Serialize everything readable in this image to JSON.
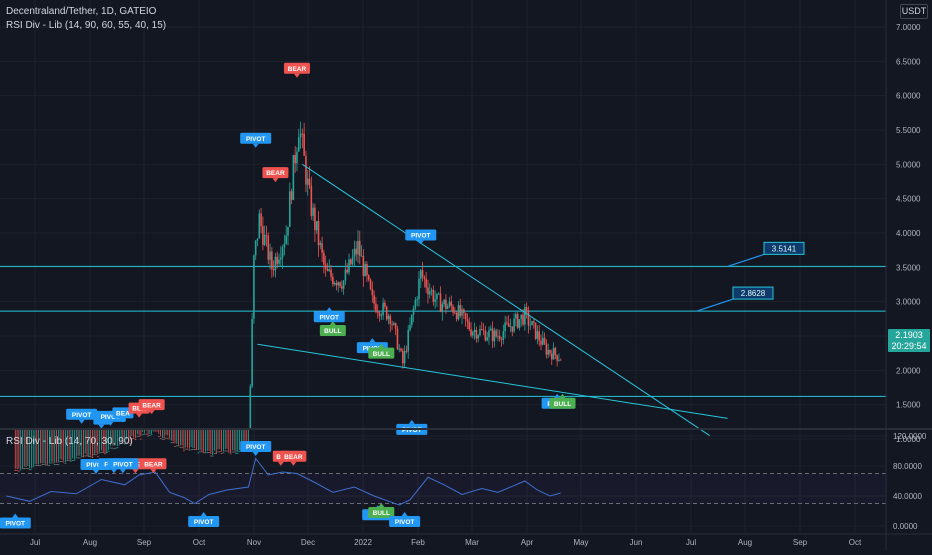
{
  "header": {
    "symbol_line": "Decentraland/Tether, 1D, GATEIO",
    "indicator_line": "RSI Div - Lib (14, 90, 60, 55, 40, 15)",
    "rsi_pane_title": "RSI Div - Lib (14, 70, 30, 90)"
  },
  "price_scale": {
    "currency_badge": "USDT",
    "current_price": "2.1903",
    "countdown": "20:29:54"
  },
  "colors": {
    "background": "#131722",
    "up": "#26a69a",
    "down": "#ef5350",
    "trendline": "#26c6da",
    "pivot_label": "#2196f3",
    "bear_label": "#ef5350",
    "bull_label": "#4caf50",
    "rsi_line": "#3f6fd0"
  },
  "chart_data": [
    {
      "type": "candlestick",
      "pane": "price",
      "yticks": [
        1.0,
        1.5,
        2.0,
        2.5,
        3.0,
        3.5,
        4.0,
        4.5,
        5.0,
        5.5,
        6.0,
        6.5,
        7.0
      ],
      "ytick_labels": [
        "1.0000",
        "1.5000",
        "2.0000",
        "2.5000",
        "3.0000",
        "3.5000",
        "4.0000",
        "4.5000",
        "5.0000",
        "5.5000",
        "6.0000",
        "6.5000",
        "7.0000"
      ],
      "xtick_labels": [
        "Jul",
        "Aug",
        "Sep",
        "Oct",
        "Nov",
        "Dec",
        "2022",
        "Feb",
        "Mar",
        "Apr",
        "May",
        "Jun",
        "Jul",
        "Aug",
        "Sep",
        "Oct"
      ],
      "price_path": [
        [
          "2021-06-20",
          0.55
        ],
        [
          "2021-07-15",
          0.65
        ],
        [
          "2021-08-08",
          0.8
        ],
        [
          "2021-08-22",
          0.95
        ],
        [
          "2021-09-05",
          1.1
        ],
        [
          "2021-09-20",
          0.85
        ],
        [
          "2021-10-10",
          0.78
        ],
        [
          "2021-10-28",
          0.85
        ],
        [
          "2021-10-31",
          3.6
        ],
        [
          "2021-11-03",
          4.2
        ],
        [
          "2021-11-10",
          3.5
        ],
        [
          "2021-11-18",
          4.0
        ],
        [
          "2021-11-25",
          5.6
        ],
        [
          "2021-12-01",
          4.5
        ],
        [
          "2021-12-10",
          3.4
        ],
        [
          "2021-12-20",
          3.3
        ],
        [
          "2021-12-28",
          3.8
        ],
        [
          "2022-01-05",
          3.0
        ],
        [
          "2022-01-15",
          2.8
        ],
        [
          "2022-01-22",
          2.1
        ],
        [
          "2022-02-01",
          3.4
        ],
        [
          "2022-02-10",
          3.0
        ],
        [
          "2022-02-20",
          2.9
        ],
        [
          "2022-03-01",
          2.6
        ],
        [
          "2022-03-15",
          2.5
        ],
        [
          "2022-03-31",
          2.8
        ],
        [
          "2022-04-12",
          2.3
        ],
        [
          "2022-04-20",
          2.19
        ]
      ],
      "horizontal_levels": [
        {
          "value": 3.5141,
          "label": "3.5141"
        },
        {
          "value": 2.8628,
          "label": "2.8628"
        },
        {
          "value": 1.62,
          "label": ""
        }
      ],
      "trendlines": [
        {
          "from": [
            "2021-11-27",
            5.0
          ],
          "to": [
            "2022-07-12",
            1.05
          ]
        },
        {
          "from": [
            "2021-11-02",
            2.38
          ],
          "to": [
            "2022-07-22",
            1.3
          ]
        }
      ],
      "labels": [
        {
          "text": "BEAR",
          "date": "2021-11-24",
          "value": 6.4,
          "kind": "bear",
          "dir": "down"
        },
        {
          "text": "PIVOT",
          "date": "2021-11-01",
          "value": 5.38,
          "kind": "pivot",
          "dir": "down"
        },
        {
          "text": "BEAR",
          "date": "2021-11-12",
          "value": 4.88,
          "kind": "bear",
          "dir": "down"
        },
        {
          "text": "PIVOT",
          "date": "2022-02-01",
          "value": 3.97,
          "kind": "pivot",
          "dir": "down"
        },
        {
          "text": "PIVOT",
          "date": "2021-12-12",
          "value": 2.78,
          "kind": "pivot",
          "dir": "up"
        },
        {
          "text": "BULL",
          "date": "2021-12-14",
          "value": 2.58,
          "kind": "bull",
          "dir": "up"
        },
        {
          "text": "PIVOT",
          "date": "2022-01-05",
          "value": 2.33,
          "kind": "pivot",
          "dir": "up"
        },
        {
          "text": "BULL",
          "date": "2022-01-10",
          "value": 2.25,
          "kind": "bull",
          "dir": "up"
        },
        {
          "text": "PIVOT",
          "date": "2022-01-27",
          "value": 1.14,
          "kind": "pivot",
          "dir": "up"
        },
        {
          "text": "PIVOT",
          "date": "2022-04-18",
          "value": 1.52,
          "kind": "pivot",
          "dir": "up"
        },
        {
          "text": "BULL",
          "date": "2022-04-21",
          "value": 1.52,
          "kind": "bull",
          "dir": "up"
        },
        {
          "text": "PIVOT",
          "date": "2021-07-27",
          "value": 1.36,
          "kind": "pivot",
          "dir": "down"
        },
        {
          "text": "BE",
          "date": "2021-08-07",
          "value": 1.29,
          "kind": "pivot",
          "dir": "down"
        },
        {
          "text": "PIVOT",
          "date": "2021-08-12",
          "value": 1.33,
          "kind": "pivot",
          "dir": "down"
        },
        {
          "text": "BEA",
          "date": "2021-08-19",
          "value": 1.38,
          "kind": "pivot",
          "dir": "down"
        },
        {
          "text": "BEA",
          "date": "2021-08-28",
          "value": 1.45,
          "kind": "bear",
          "dir": "down"
        },
        {
          "text": "BEAR",
          "date": "2021-09-04",
          "value": 1.5,
          "kind": "bear",
          "dir": "down"
        }
      ]
    },
    {
      "type": "line",
      "pane": "rsi",
      "yticks": [
        0,
        40,
        80,
        120
      ],
      "ytick_labels": [
        "0.0000",
        "40.0000",
        "80.0000",
        "120.0000"
      ],
      "bands": {
        "upper": 70,
        "lower": 30
      },
      "series": [
        {
          "values": [
            [
              "2021-06-15",
              40
            ],
            [
              "2021-06-28",
              33
            ],
            [
              "2021-07-10",
              46
            ],
            [
              "2021-07-24",
              43
            ],
            [
              "2021-08-07",
              62
            ],
            [
              "2021-08-20",
              55
            ],
            [
              "2021-08-28",
              68
            ],
            [
              "2021-09-06",
              72
            ],
            [
              "2021-09-14",
              45
            ],
            [
              "2021-09-22",
              38
            ],
            [
              "2021-09-28",
              30
            ],
            [
              "2021-10-06",
              42
            ],
            [
              "2021-10-16",
              48
            ],
            [
              "2021-10-28",
              52
            ],
            [
              "2021-11-01",
              90
            ],
            [
              "2021-11-08",
              68
            ],
            [
              "2021-11-16",
              72
            ],
            [
              "2021-11-24",
              70
            ],
            [
              "2021-12-04",
              58
            ],
            [
              "2021-12-14",
              45
            ],
            [
              "2021-12-26",
              52
            ],
            [
              "2022-01-06",
              40
            ],
            [
              "2022-01-20",
              28
            ],
            [
              "2022-01-26",
              35
            ],
            [
              "2022-02-05",
              65
            ],
            [
              "2022-02-14",
              55
            ],
            [
              "2022-02-24",
              42
            ],
            [
              "2022-03-07",
              50
            ],
            [
              "2022-03-16",
              45
            ],
            [
              "2022-03-24",
              53
            ],
            [
              "2022-03-31",
              60
            ],
            [
              "2022-04-07",
              48
            ],
            [
              "2022-04-14",
              40
            ],
            [
              "2022-04-20",
              44
            ]
          ]
        }
      ],
      "labels": [
        {
          "text": "PIVOT",
          "date": "2021-06-20",
          "value": 4,
          "kind": "pivot",
          "dir": "up"
        },
        {
          "text": "PIVOT",
          "date": "2021-10-03",
          "value": 6,
          "kind": "pivot",
          "dir": "up"
        },
        {
          "text": "PIVOT",
          "date": "2021-11-01",
          "value": 106,
          "kind": "pivot",
          "dir": "down"
        },
        {
          "text": "BE",
          "date": "2021-11-15",
          "value": 93,
          "kind": "bear",
          "dir": "down"
        },
        {
          "text": "BEAR",
          "date": "2021-11-22",
          "value": 93,
          "kind": "bear",
          "dir": "down"
        },
        {
          "text": "PIVOT",
          "date": "2021-08-04",
          "value": 82,
          "kind": "pivot",
          "dir": "down"
        },
        {
          "text": "PIVOT",
          "date": "2021-08-14",
          "value": 83,
          "kind": "pivot",
          "dir": "down"
        },
        {
          "text": "BE",
          "date": "2021-08-26",
          "value": 83,
          "kind": "bear",
          "dir": "down"
        },
        {
          "text": "PIVOT",
          "date": "2021-08-19",
          "value": 83,
          "kind": "pivot",
          "dir": "down"
        },
        {
          "text": "BEAR",
          "date": "2021-09-05",
          "value": 83,
          "kind": "bear",
          "dir": "down"
        },
        {
          "text": "PIVOT",
          "date": "2022-01-08",
          "value": 15,
          "kind": "pivot",
          "dir": "up"
        },
        {
          "text": "BULL",
          "date": "2022-01-10",
          "value": 18,
          "kind": "bull",
          "dir": "up"
        },
        {
          "text": "PIVOT",
          "date": "2022-01-23",
          "value": 6,
          "kind": "pivot",
          "dir": "up"
        }
      ]
    }
  ]
}
